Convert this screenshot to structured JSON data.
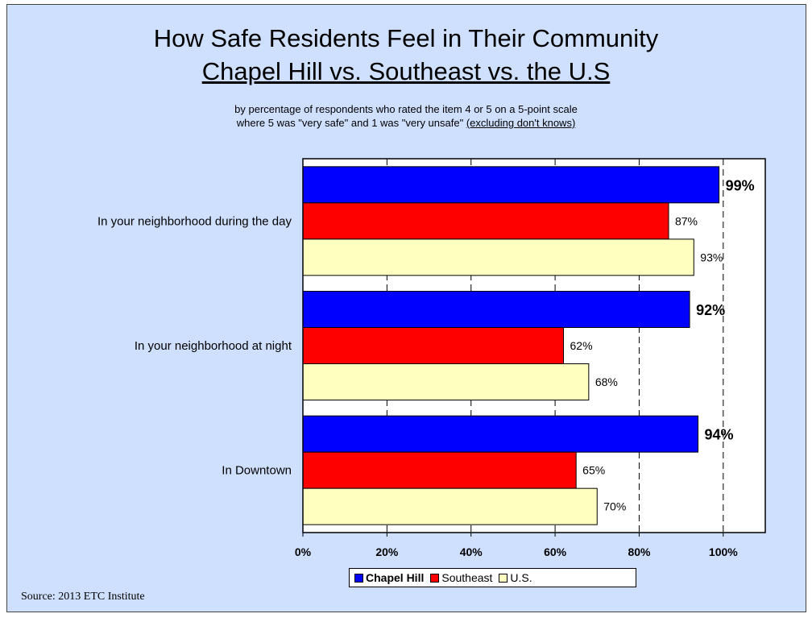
{
  "chart_data": {
    "type": "bar",
    "orientation": "horizontal",
    "title": "How Safe Residents Feel in Their Community",
    "subtitle": "Chapel Hill vs. Southeast vs. the U.S",
    "note_line1": "by percentage of respondents who rated the item 4 or 5 on a 5-point scale",
    "note_line2": "where 5 was \"very safe\" and 1 was \"very unsafe\"",
    "note_line2_underlined": "(excluding don't knows)",
    "categories": [
      "In your neighborhood during the day",
      "In your neighborhood at night",
      "In Downtown"
    ],
    "series": [
      {
        "name": "Chapel Hill",
        "color": "#0000ff",
        "values": [
          99,
          92,
          94
        ],
        "labels": [
          "99%",
          "92%",
          "94%"
        ],
        "bold": true
      },
      {
        "name": "Southeast",
        "color": "#ff0000",
        "values": [
          87,
          62,
          65
        ],
        "labels": [
          "87%",
          "62%",
          "65%"
        ],
        "bold": false
      },
      {
        "name": "U.S.",
        "color": "#ffffc0",
        "values": [
          93,
          68,
          70
        ],
        "labels": [
          "93%",
          "68%",
          "70%"
        ],
        "bold": false
      }
    ],
    "xlim": [
      0,
      110
    ],
    "xticks": [
      0,
      20,
      40,
      60,
      80,
      100
    ],
    "xtick_labels": [
      "0%",
      "20%",
      "40%",
      "60%",
      "80%",
      "100%"
    ],
    "grid": "vertical dashed",
    "legend_position": "bottom"
  },
  "source": "Source:  2013 ETC Institute"
}
